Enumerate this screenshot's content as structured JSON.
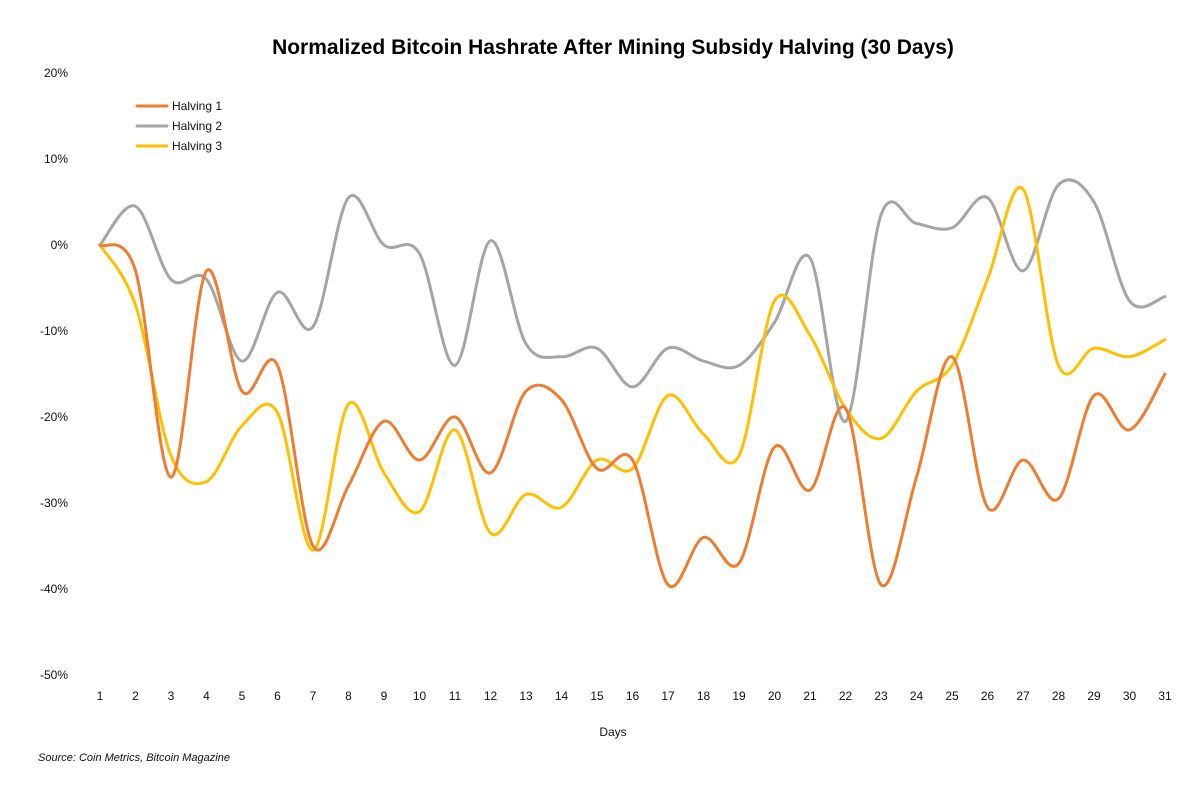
{
  "chart_data": {
    "type": "line",
    "title": "Normalized Bitcoin Hashrate After Mining Subsidy Halving (30 Days)",
    "xlabel": "Days",
    "ylabel": "",
    "x": [
      1,
      2,
      3,
      4,
      5,
      6,
      7,
      8,
      9,
      10,
      11,
      12,
      13,
      14,
      15,
      16,
      17,
      18,
      19,
      20,
      21,
      22,
      23,
      24,
      25,
      26,
      27,
      28,
      29,
      30,
      31
    ],
    "ylim": [
      -50,
      20
    ],
    "yticks": [
      20,
      10,
      0,
      -10,
      -20,
      -30,
      -40,
      -50
    ],
    "ytick_labels": [
      "20%",
      "10%",
      "0%",
      "-10%",
      "-20%",
      "-30%",
      "-40%",
      "-50%"
    ],
    "grid": false,
    "legend_position": "top-left",
    "series": [
      {
        "name": "Halving 1",
        "color": "#ED7D31",
        "values": [
          0,
          -3,
          -27,
          -3,
          -17,
          -14,
          -35,
          -28,
          -20.5,
          -25,
          -20,
          -26.5,
          -17,
          -18,
          -26,
          -25,
          -39.5,
          -34,
          -37,
          -23.5,
          -28.5,
          -19,
          -39.5,
          -27,
          -13,
          -30.5,
          -25,
          -29.5,
          -17.5,
          -21.5,
          -15
        ]
      },
      {
        "name": "Halving 2",
        "color": "#A5A5A5",
        "values": [
          0,
          4.5,
          -4,
          -4,
          -13.5,
          -5.5,
          -9.5,
          5.5,
          0,
          -1,
          -14,
          0.5,
          -11.5,
          -13,
          -12,
          -16.5,
          -12,
          -13.5,
          -14,
          -9,
          -1.5,
          -20.5,
          3.5,
          2.5,
          2,
          5.5,
          -3,
          7,
          5,
          -6.5,
          -6
        ]
      },
      {
        "name": "Halving 3",
        "color": "#FFC000",
        "values": [
          0,
          -7,
          -24.5,
          -27.5,
          -21,
          -19.5,
          -35.5,
          -18.5,
          -26.5,
          -31,
          -21.5,
          -33.5,
          -29,
          -30.5,
          -25,
          -26,
          -17.5,
          -22,
          -24.5,
          -6.5,
          -10.5,
          -19,
          -22.5,
          -17,
          -14,
          -4,
          6.5,
          -14,
          -12,
          -13,
          -11
        ]
      }
    ],
    "source": "Source: Coin Metrics, Bitcoin Magazine"
  }
}
